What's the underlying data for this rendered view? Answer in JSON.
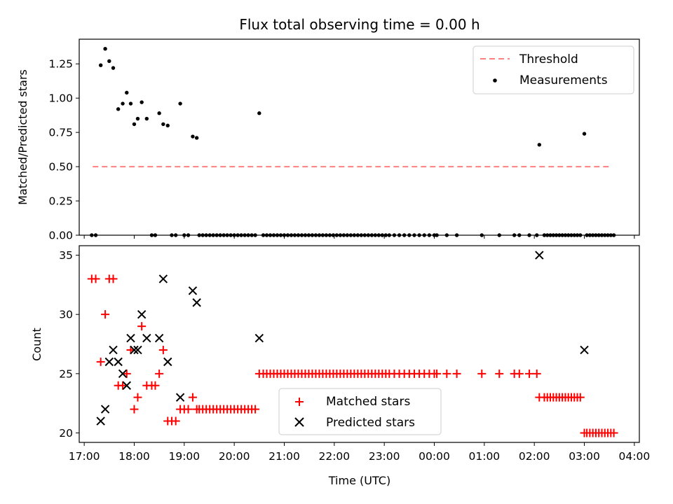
{
  "chart_data": [
    {
      "type": "scatter",
      "title": "Flux total observing time = 0.00 h",
      "xlabel": "",
      "ylabel": "Matched/Predicted stars",
      "ylim": [
        0,
        1.43
      ],
      "yticks": [
        "0.00",
        "0.25",
        "0.50",
        "0.75",
        "1.00",
        "1.25"
      ],
      "legend_position": "upper right",
      "colors": {
        "threshold": "#ff8080",
        "measurements": "#000000"
      },
      "threshold": {
        "name": "Threshold",
        "y": 0.5,
        "x_start": 17.17,
        "x_end": 27.55
      },
      "measurements": {
        "name": "Measurements",
        "x": [
          17.15,
          17.23,
          17.33,
          17.42,
          17.5,
          17.58,
          17.68,
          17.77,
          17.85,
          17.93,
          18.0,
          18.07,
          18.15,
          18.25,
          18.35,
          18.42,
          18.5,
          18.58,
          18.67,
          18.75,
          18.83,
          18.92,
          19.0,
          19.08,
          19.17,
          19.25,
          20.5,
          23.2,
          23.3,
          23.4,
          23.5,
          23.6,
          23.7,
          23.8,
          23.9,
          24.0,
          24.05,
          24.25,
          24.45,
          24.95,
          25.3,
          25.6,
          25.7,
          25.9,
          26.05,
          26.1,
          27.0
        ],
        "y": [
          0.0,
          0.0,
          1.24,
          1.36,
          1.27,
          1.22,
          0.92,
          0.96,
          1.04,
          0.96,
          0.81,
          0.85,
          0.97,
          0.85,
          0.0,
          0.0,
          0.89,
          0.81,
          0.8,
          0.0,
          0.0,
          0.96,
          0.0,
          0.0,
          0.72,
          0.71,
          0.89,
          0.0,
          0.0,
          0.0,
          0.0,
          0.0,
          0.0,
          0.0,
          0.0,
          0.0,
          0.0,
          0.0,
          0.0,
          0.0,
          0.0,
          0.0,
          0.0,
          0.0,
          0.0,
          0.66,
          0.74
        ],
        "zero_runs": [
          [
            19.3,
            20.45,
            0.07
          ],
          [
            20.58,
            23.15,
            0.07
          ],
          [
            26.2,
            26.95,
            0.06
          ],
          [
            27.05,
            27.6,
            0.06
          ]
        ]
      }
    },
    {
      "type": "scatter",
      "title": "",
      "xlabel": "Time (UTC)",
      "ylabel": "Count",
      "ylim": [
        19.2,
        35.8
      ],
      "yticks": [
        "20",
        "25",
        "30",
        "35"
      ],
      "xlim": [
        16.9,
        28.1
      ],
      "xticks": [
        17,
        18,
        19,
        20,
        21,
        22,
        23,
        24,
        25,
        26,
        27,
        28
      ],
      "xticklabels": [
        "17:00",
        "18:00",
        "19:00",
        "20:00",
        "21:00",
        "22:00",
        "23:00",
        "00:00",
        "01:00",
        "02:00",
        "03:00",
        "04:00"
      ],
      "legend_position": "lower center",
      "colors": {
        "matched": "#ff0000",
        "predicted": "#000000"
      },
      "matched": {
        "name": "Matched stars",
        "x": [
          17.15,
          17.23,
          17.33,
          17.42,
          17.5,
          17.58,
          17.68,
          17.77,
          17.85,
          17.93,
          18.0,
          18.07,
          18.15,
          18.25,
          18.35,
          18.42,
          18.5,
          18.58,
          18.67,
          18.75,
          18.83,
          18.92,
          19.0,
          19.08,
          19.17,
          19.25,
          20.5,
          23.2,
          23.3,
          23.4,
          23.5,
          23.6,
          23.7,
          23.8,
          23.9,
          24.0,
          24.05,
          24.25,
          24.45,
          24.95,
          25.3,
          25.6,
          25.7,
          25.9,
          26.05,
          26.1,
          27.0
        ],
        "y": [
          33,
          33,
          26,
          30,
          33,
          33,
          24,
          24,
          25,
          27,
          22,
          23,
          29,
          24,
          24,
          24,
          25,
          27,
          21,
          21,
          21,
          22,
          22,
          22,
          23,
          22,
          25,
          25,
          25,
          25,
          25,
          25,
          25,
          25,
          25,
          25,
          25,
          25,
          25,
          25,
          25,
          25,
          25,
          25,
          25,
          23,
          20
        ],
        "runs": [
          [
            19.3,
            20.45,
            22,
            0.07
          ],
          [
            20.58,
            23.15,
            25,
            0.07
          ],
          [
            26.2,
            26.95,
            23,
            0.06
          ],
          [
            27.05,
            27.6,
            20,
            0.06
          ]
        ]
      },
      "predicted": {
        "name": "Predicted stars",
        "x": [
          17.33,
          17.42,
          17.5,
          17.58,
          17.68,
          17.77,
          17.85,
          17.93,
          18.0,
          18.07,
          18.15,
          18.25,
          18.5,
          18.58,
          18.67,
          18.92,
          19.17,
          19.25,
          20.5,
          26.1,
          27.0
        ],
        "y": [
          21,
          22,
          26,
          27,
          26,
          25,
          24,
          28,
          27,
          27,
          30,
          28,
          28,
          33,
          26,
          23,
          32,
          31,
          28,
          35,
          27
        ]
      }
    }
  ]
}
